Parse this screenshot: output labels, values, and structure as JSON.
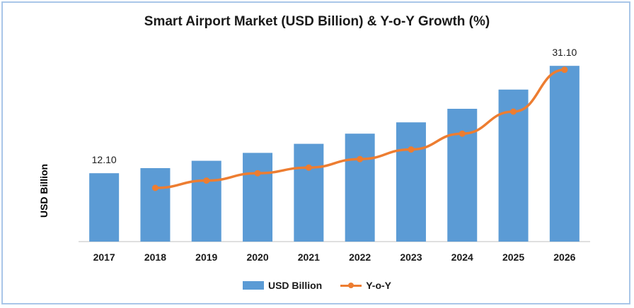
{
  "chart_data": {
    "type": "bar",
    "title": "Smart Airport Market (USD Billion) & Y-o-Y Growth (%)",
    "ylabel": "USD Billion",
    "xlabel": "",
    "categories": [
      "2017",
      "2018",
      "2019",
      "2020",
      "2021",
      "2022",
      "2023",
      "2024",
      "2025",
      "2026"
    ],
    "series": [
      {
        "name": "USD Billion",
        "type": "bar",
        "color": "#5b9bd5",
        "values": [
          12.1,
          13.0,
          14.3,
          15.7,
          17.3,
          19.1,
          21.1,
          23.5,
          26.9,
          31.1
        ]
      },
      {
        "name": "Y-o-Y",
        "type": "line",
        "color": "#ed7d31",
        "values": [
          null,
          9.5,
          10.8,
          12.1,
          13.1,
          14.6,
          16.3,
          19.1,
          23.0,
          30.4
        ]
      }
    ],
    "data_labels": [
      {
        "category": "2017",
        "text": "12.10"
      },
      {
        "category": "2026",
        "text": "31.10"
      }
    ],
    "ylim": [
      0,
      33
    ],
    "grid": false,
    "legend": "bottom"
  }
}
